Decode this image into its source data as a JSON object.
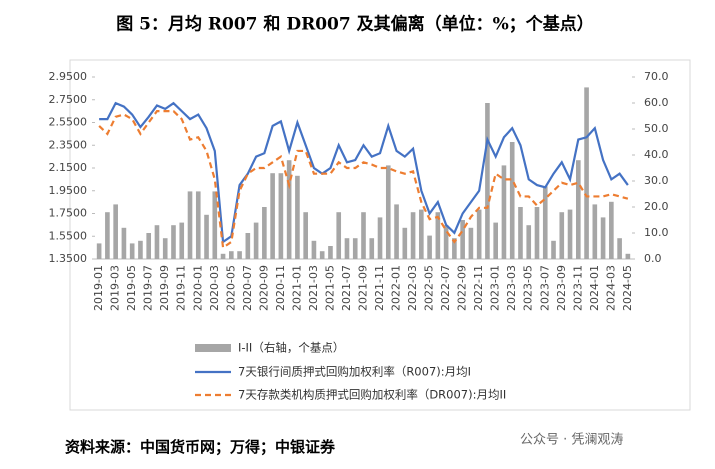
{
  "chart_data": {
    "type": "bar-line",
    "title": "图 5：月均 R007 和 DR007 及其偏离（单位：%；个基点）",
    "source": "资料来源：中国货币网；万得；中银证券",
    "watermark": "公众号 · 凭澜观涛",
    "categories": [
      "2019-01",
      null,
      "2019-03",
      null,
      "2019-05",
      null,
      "2019-07",
      null,
      "2019-09",
      null,
      "2019-11",
      null,
      "2020-01",
      null,
      "2020-03",
      null,
      "2020-05",
      null,
      "2020-07",
      null,
      "2020-09",
      null,
      "2020-11",
      null,
      "2021-01",
      null,
      "2021-03",
      null,
      "2021-05",
      null,
      "2021-07",
      null,
      "2021-09",
      null,
      "2021-11",
      null,
      "2022-01",
      null,
      "2022-03",
      null,
      "2022-05",
      null,
      "2022-07",
      null,
      "2022-09",
      null,
      "2022-11",
      null,
      "2023-01",
      null,
      "2023-03",
      null,
      "2023-05",
      null,
      "2023-07",
      null,
      "2023-09",
      null,
      "2023-11",
      null,
      "2024-01",
      null,
      "2024-03",
      null,
      "2024-05"
    ],
    "series": [
      {
        "name": "I-II（右轴，个基点）",
        "color": "#a6a6a6",
        "axis": "y2",
        "kind": "bar",
        "values": [
          6,
          18,
          21,
          12,
          6,
          7,
          10,
          13,
          8,
          13,
          14,
          26,
          26,
          17,
          26,
          2,
          3,
          3,
          10,
          14,
          20,
          33,
          33,
          38,
          32,
          18,
          7,
          3,
          5,
          18,
          8,
          8,
          18,
          8,
          16,
          36,
          21,
          12,
          18,
          19,
          9,
          18,
          13,
          8,
          15,
          12,
          19,
          60,
          14,
          36,
          45,
          20,
          13,
          20,
          28,
          7,
          18,
          19,
          38,
          66,
          21,
          16,
          22,
          8,
          2
        ]
      },
      {
        "name": "7天银行间质押式回购加权利率（R007):月均I",
        "color": "#4472c4",
        "kind": "line",
        "values": [
          2.58,
          2.58,
          2.72,
          2.69,
          2.62,
          2.51,
          2.6,
          2.7,
          2.67,
          2.72,
          2.65,
          2.58,
          2.62,
          2.5,
          2.3,
          1.5,
          1.55,
          2.0,
          2.1,
          2.25,
          2.28,
          2.52,
          2.56,
          2.3,
          2.55,
          2.35,
          2.15,
          2.1,
          2.15,
          2.35,
          2.2,
          2.22,
          2.35,
          2.25,
          2.28,
          2.52,
          2.3,
          2.25,
          2.32,
          1.95,
          1.75,
          1.85,
          1.65,
          1.58,
          1.75,
          1.85,
          1.95,
          2.4,
          2.25,
          2.42,
          2.5,
          2.35,
          2.05,
          2.0,
          1.98,
          2.1,
          2.2,
          2.05,
          2.4,
          2.42,
          2.5,
          2.22,
          2.05,
          2.1,
          2.0
        ]
      },
      {
        "name": "7天存款类机构质押式回购加权利率（DR007):月均II",
        "color": "#ed7d31",
        "kind": "dash",
        "values": [
          2.52,
          2.45,
          2.6,
          2.62,
          2.58,
          2.45,
          2.55,
          2.65,
          2.65,
          2.65,
          2.58,
          2.4,
          2.42,
          2.3,
          2.05,
          1.45,
          1.5,
          1.95,
          2.1,
          2.15,
          2.15,
          2.2,
          2.25,
          2.0,
          2.3,
          2.3,
          2.1,
          2.1,
          2.1,
          2.2,
          2.15,
          2.15,
          2.2,
          2.18,
          2.15,
          2.15,
          2.12,
          2.1,
          2.12,
          1.85,
          1.7,
          1.72,
          1.6,
          1.5,
          1.6,
          1.72,
          1.8,
          1.8,
          2.1,
          2.05,
          2.05,
          1.9,
          1.9,
          1.82,
          1.88,
          1.95,
          2.02,
          2.0,
          2.02,
          1.9,
          1.9,
          1.9,
          1.92,
          1.9,
          1.88
        ]
      }
    ],
    "ylim": [
      1.35,
      2.95
    ],
    "yticks": [
      {
        "value": 1.35,
        "label": "1.3500"
      },
      {
        "value": 1.55,
        "label": "1.5500"
      },
      {
        "value": 1.75,
        "label": "1.7500"
      },
      {
        "value": 1.95,
        "label": "1.9500"
      },
      {
        "value": 2.15,
        "label": "2.1500"
      },
      {
        "value": 2.35,
        "label": "2.3500"
      },
      {
        "value": 2.55,
        "label": "2.5500"
      },
      {
        "value": 2.75,
        "label": "2.7500"
      },
      {
        "value": 2.95,
        "label": "2.9500"
      }
    ],
    "y2lim": [
      0,
      70
    ],
    "y2ticks": [
      {
        "value": 0,
        "label": "0.0"
      },
      {
        "value": 10,
        "label": "10.0"
      },
      {
        "value": 20,
        "label": "20.0"
      },
      {
        "value": 30,
        "label": "30.0"
      },
      {
        "value": 40,
        "label": "40.0"
      },
      {
        "value": 50,
        "label": "50.0"
      },
      {
        "value": 60,
        "label": "60.0"
      },
      {
        "value": 70,
        "label": "70.0"
      }
    ]
  }
}
